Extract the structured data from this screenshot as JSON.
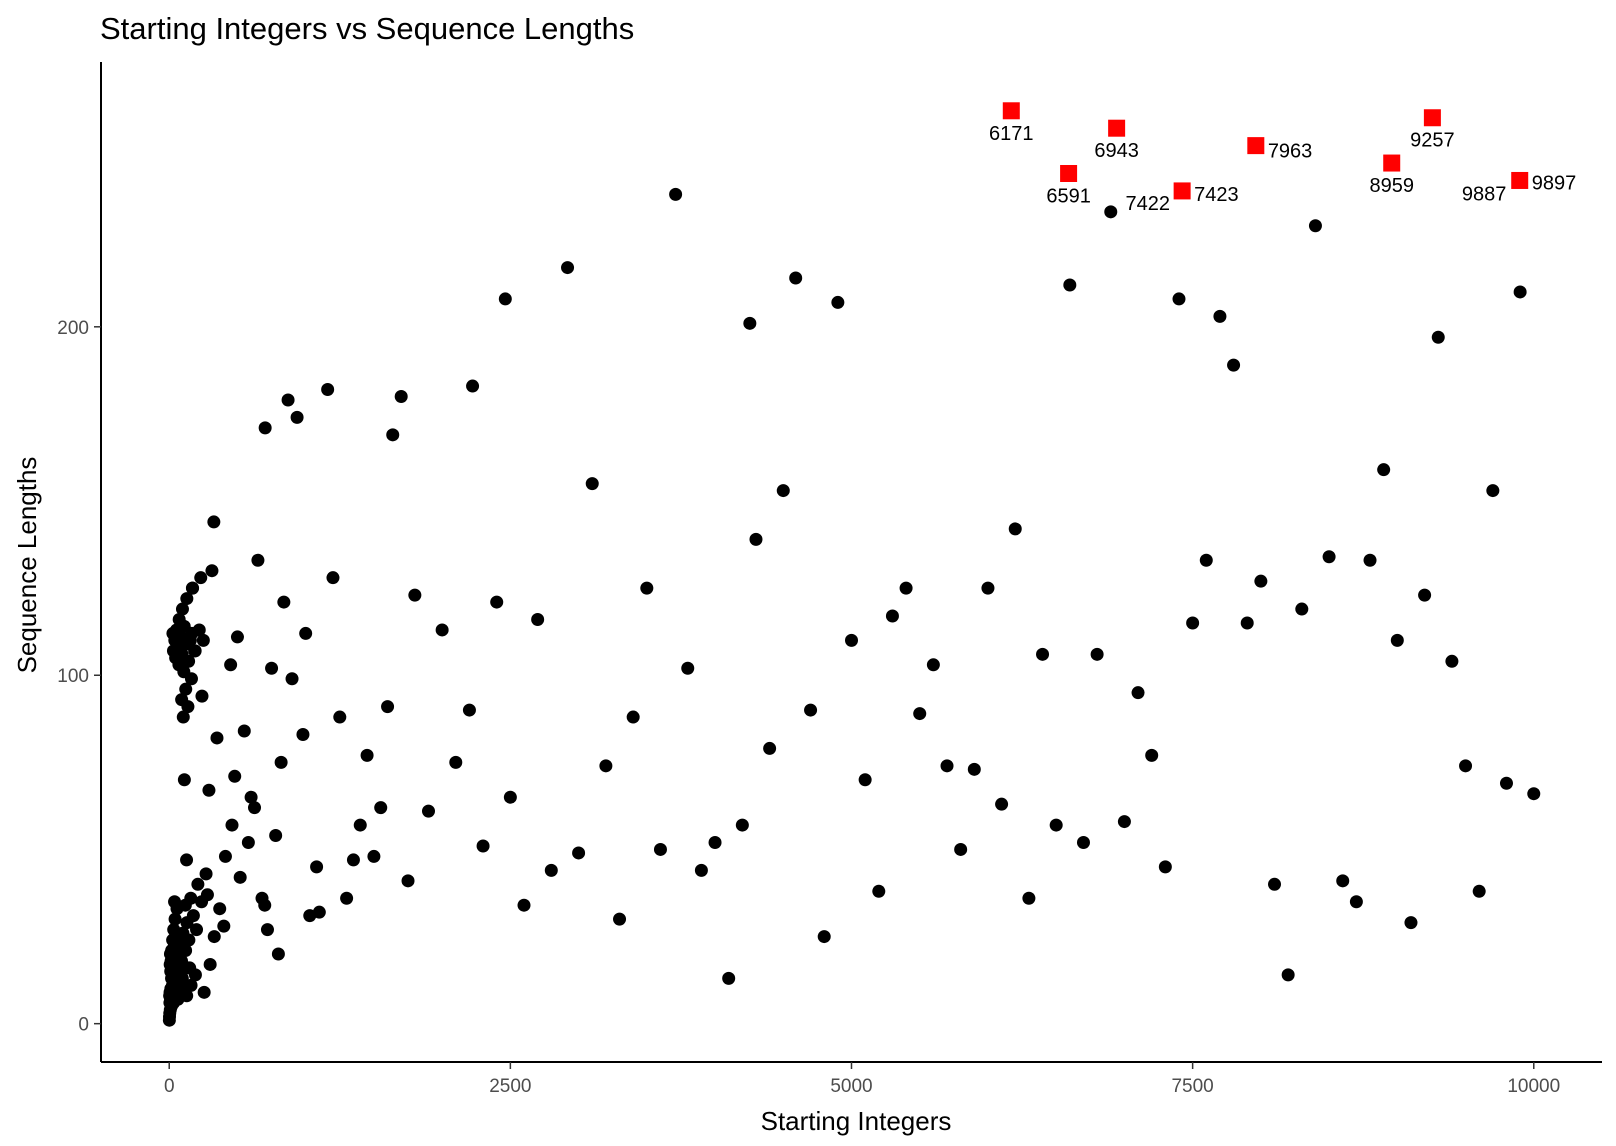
{
  "chart_data": {
    "type": "scatter",
    "title": "Starting Integers vs Sequence Lengths",
    "xlabel": "Starting Integers",
    "ylabel": "Sequence Lengths",
    "xlim": [
      -500,
      10500
    ],
    "ylim": [
      -11,
      276
    ],
    "x_ticks": [
      0,
      2500,
      5000,
      7500,
      10000
    ],
    "y_ticks": [
      0,
      100,
      200
    ],
    "grid": false,
    "colors": {
      "points": "#000000",
      "highlight": "#ff0000",
      "axis": "#000000",
      "tick_text": "#4d4d4d"
    },
    "highlighted": [
      {
        "x": 6171,
        "y": 262,
        "label": "6171"
      },
      {
        "x": 6943,
        "y": 257,
        "label": "6943"
      },
      {
        "x": 7963,
        "y": 252,
        "label": "7963"
      },
      {
        "x": 9257,
        "y": 260,
        "label": "9257"
      },
      {
        "x": 6591,
        "y": 244,
        "label": "6591"
      },
      {
        "x": 8959,
        "y": 247,
        "label": "8959"
      },
      {
        "x": 7422,
        "y": 239,
        "label": "7422"
      },
      {
        "x": 7423,
        "y": 239,
        "label": "7423"
      },
      {
        "x": 9887,
        "y": 242,
        "label": "9887"
      },
      {
        "x": 9897,
        "y": 242,
        "label": "9897"
      }
    ],
    "points": [
      [
        1,
        1
      ],
      [
        2,
        2
      ],
      [
        3,
        8
      ],
      [
        4,
        3
      ],
      [
        5,
        6
      ],
      [
        6,
        9
      ],
      [
        7,
        17
      ],
      [
        8,
        4
      ],
      [
        9,
        20
      ],
      [
        10,
        7
      ],
      [
        11,
        15
      ],
      [
        12,
        10
      ],
      [
        13,
        10
      ],
      [
        14,
        18
      ],
      [
        15,
        18
      ],
      [
        16,
        5
      ],
      [
        17,
        13
      ],
      [
        18,
        21
      ],
      [
        19,
        21
      ],
      [
        20,
        8
      ],
      [
        21,
        8
      ],
      [
        22,
        16
      ],
      [
        23,
        16
      ],
      [
        24,
        11
      ],
      [
        25,
        24
      ],
      [
        26,
        11
      ],
      [
        27,
        112
      ],
      [
        28,
        19
      ],
      [
        29,
        19
      ],
      [
        30,
        19
      ],
      [
        31,
        107
      ],
      [
        32,
        6
      ],
      [
        33,
        27
      ],
      [
        34,
        14
      ],
      [
        35,
        14
      ],
      [
        36,
        22
      ],
      [
        37,
        22
      ],
      [
        38,
        22
      ],
      [
        39,
        35
      ],
      [
        40,
        9
      ],
      [
        41,
        110
      ],
      [
        42,
        9
      ],
      [
        43,
        30
      ],
      [
        44,
        17
      ],
      [
        45,
        17
      ],
      [
        46,
        17
      ],
      [
        47,
        105
      ],
      [
        48,
        12
      ],
      [
        50,
        25
      ],
      [
        54,
        113
      ],
      [
        55,
        113
      ],
      [
        57,
        33
      ],
      [
        60,
        20
      ],
      [
        62,
        108
      ],
      [
        63,
        108
      ],
      [
        64,
        7
      ],
      [
        68,
        15
      ],
      [
        70,
        15
      ],
      [
        71,
        103
      ],
      [
        72,
        23
      ],
      [
        73,
        116
      ],
      [
        75,
        15
      ],
      [
        76,
        23
      ],
      [
        80,
        10
      ],
      [
        82,
        111
      ],
      [
        84,
        10
      ],
      [
        88,
        18
      ],
      [
        90,
        18
      ],
      [
        91,
        93
      ],
      [
        94,
        106
      ],
      [
        96,
        13
      ],
      [
        97,
        119
      ],
      [
        100,
        26
      ],
      [
        103,
        88
      ],
      [
        107,
        101
      ],
      [
        108,
        114
      ],
      [
        109,
        114
      ],
      [
        110,
        114
      ],
      [
        111,
        70
      ],
      [
        118,
        34
      ],
      [
        120,
        21
      ],
      [
        121,
        96
      ],
      [
        124,
        109
      ],
      [
        126,
        109
      ],
      [
        127,
        47
      ],
      [
        128,
        8
      ],
      [
        129,
        122
      ],
      [
        130,
        29
      ],
      [
        137,
        91
      ],
      [
        140,
        16
      ],
      [
        142,
        104
      ],
      [
        144,
        24
      ],
      [
        150,
        16
      ],
      [
        155,
        110
      ],
      [
        158,
        36
      ],
      [
        160,
        11
      ],
      [
        163,
        99
      ],
      [
        166,
        112
      ],
      [
        170,
        125
      ],
      [
        171,
        125
      ],
      [
        177,
        31
      ],
      [
        186,
        107
      ],
      [
        190,
        107
      ],
      [
        192,
        14
      ],
      [
        200,
        27
      ],
      [
        210,
        40
      ],
      [
        220,
        113
      ],
      [
        231,
        128
      ],
      [
        237,
        35
      ],
      [
        240,
        94
      ],
      [
        250,
        110
      ],
      [
        256,
        9
      ],
      [
        270,
        43
      ],
      [
        280,
        37
      ],
      [
        291,
        67
      ],
      [
        300,
        17
      ],
      [
        313,
        130
      ],
      [
        327,
        144
      ],
      [
        330,
        25
      ],
      [
        350,
        82
      ],
      [
        370,
        33
      ],
      [
        400,
        28
      ],
      [
        412,
        48
      ],
      [
        450,
        103
      ],
      [
        460,
        57
      ],
      [
        480,
        71
      ],
      [
        500,
        111
      ],
      [
        520,
        42
      ],
      [
        550,
        84
      ],
      [
        580,
        52
      ],
      [
        600,
        65
      ],
      [
        625,
        62
      ],
      [
        650,
        133
      ],
      [
        680,
        36
      ],
      [
        700,
        34
      ],
      [
        703,
        171
      ],
      [
        720,
        27
      ],
      [
        750,
        102
      ],
      [
        780,
        54
      ],
      [
        800,
        20
      ],
      [
        820,
        75
      ],
      [
        840,
        121
      ],
      [
        871,
        179
      ],
      [
        900,
        99
      ],
      [
        937,
        174
      ],
      [
        980,
        83
      ],
      [
        1000,
        112
      ],
      [
        1030,
        31
      ],
      [
        1080,
        45
      ],
      [
        1100,
        32
      ],
      [
        1161,
        182
      ],
      [
        1200,
        128
      ],
      [
        1250,
        88
      ],
      [
        1300,
        36
      ],
      [
        1350,
        47
      ],
      [
        1400,
        57
      ],
      [
        1450,
        77
      ],
      [
        1500,
        48
      ],
      [
        1550,
        62
      ],
      [
        1600,
        91
      ],
      [
        1638,
        169
      ],
      [
        1700,
        180
      ],
      [
        1750,
        41
      ],
      [
        1800,
        123
      ],
      [
        1900,
        61
      ],
      [
        2000,
        113
      ],
      [
        2100,
        75
      ],
      [
        2200,
        90
      ],
      [
        2223,
        183
      ],
      [
        2300,
        51
      ],
      [
        2400,
        121
      ],
      [
        2463,
        208
      ],
      [
        2500,
        65
      ],
      [
        2600,
        34
      ],
      [
        2700,
        116
      ],
      [
        2800,
        44
      ],
      [
        2919,
        217
      ],
      [
        3000,
        49
      ],
      [
        3100,
        155
      ],
      [
        3200,
        74
      ],
      [
        3300,
        30
      ],
      [
        3400,
        88
      ],
      [
        3500,
        125
      ],
      [
        3600,
        50
      ],
      [
        3711,
        238
      ],
      [
        3800,
        102
      ],
      [
        3900,
        44
      ],
      [
        4000,
        52
      ],
      [
        4100,
        13
      ],
      [
        4200,
        57
      ],
      [
        4255,
        201
      ],
      [
        4300,
        139
      ],
      [
        4400,
        79
      ],
      [
        4500,
        153
      ],
      [
        4591,
        214
      ],
      [
        4700,
        90
      ],
      [
        4800,
        25
      ],
      [
        4900,
        207
      ],
      [
        5000,
        110
      ],
      [
        5100,
        70
      ],
      [
        5200,
        38
      ],
      [
        5300,
        117
      ],
      [
        5400,
        125
      ],
      [
        5500,
        89
      ],
      [
        5600,
        103
      ],
      [
        5700,
        74
      ],
      [
        5800,
        50
      ],
      [
        5900,
        73
      ],
      [
        6000,
        125
      ],
      [
        6100,
        63
      ],
      [
        6200,
        142
      ],
      [
        6300,
        36
      ],
      [
        6400,
        106
      ],
      [
        6500,
        57
      ],
      [
        6600,
        212
      ],
      [
        6700,
        52
      ],
      [
        6800,
        106
      ],
      [
        6900,
        233
      ],
      [
        7000,
        58
      ],
      [
        7100,
        95
      ],
      [
        7200,
        77
      ],
      [
        7300,
        45
      ],
      [
        7400,
        208
      ],
      [
        7500,
        115
      ],
      [
        7600,
        133
      ],
      [
        7700,
        203
      ],
      [
        7800,
        189
      ],
      [
        7900,
        115
      ],
      [
        8000,
        127
      ],
      [
        8100,
        40
      ],
      [
        8200,
        14
      ],
      [
        8300,
        119
      ],
      [
        8400,
        229
      ],
      [
        8500,
        134
      ],
      [
        8600,
        41
      ],
      [
        8700,
        35
      ],
      [
        8800,
        133
      ],
      [
        8900,
        159
      ],
      [
        9000,
        110
      ],
      [
        9100,
        29
      ],
      [
        9200,
        123
      ],
      [
        9300,
        197
      ],
      [
        9400,
        104
      ],
      [
        9500,
        74
      ],
      [
        9600,
        38
      ],
      [
        9700,
        153
      ],
      [
        9800,
        69
      ],
      [
        9900,
        210
      ],
      [
        10000,
        66
      ]
    ]
  }
}
